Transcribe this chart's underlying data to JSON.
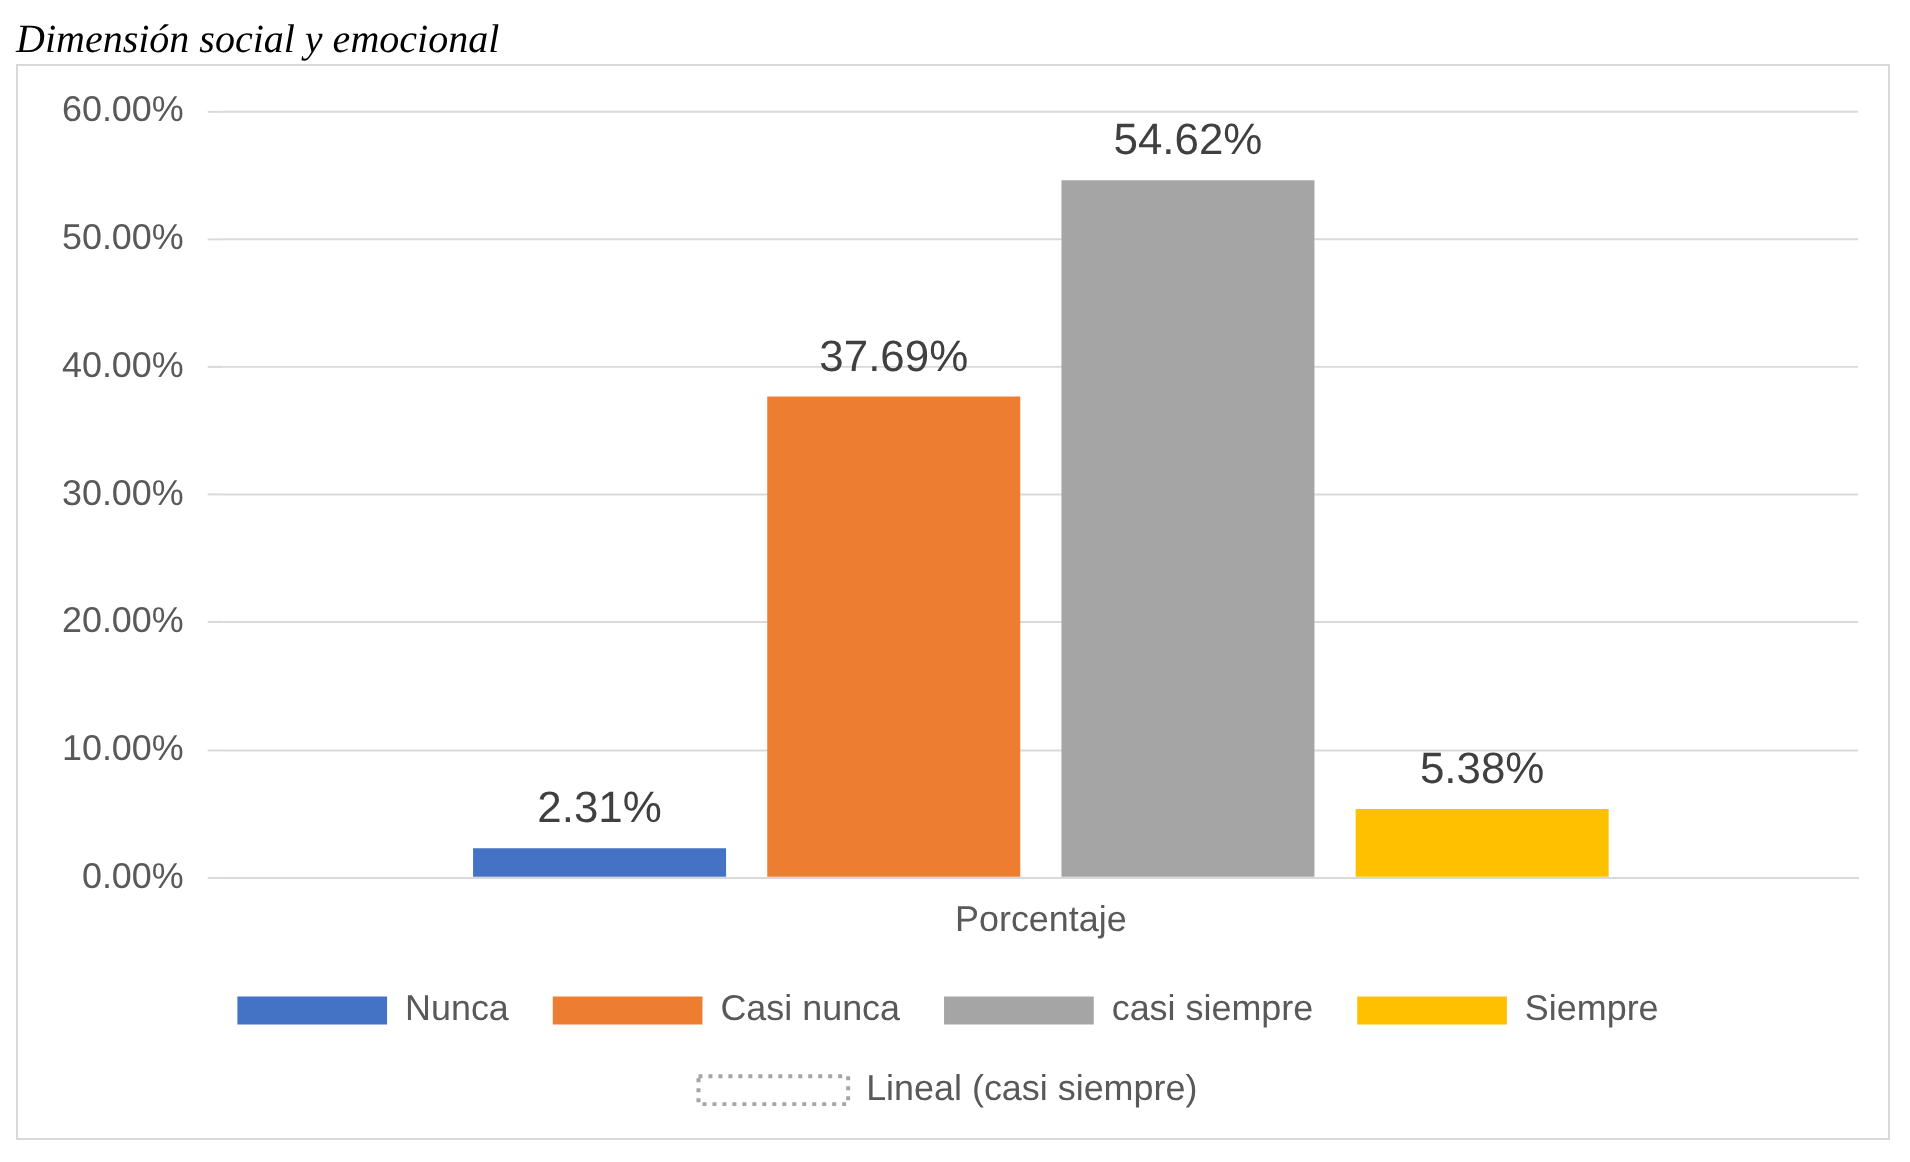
{
  "chart_data": {
    "type": "bar",
    "title": "Dimensión social y emocional",
    "categories": [
      "Porcentaje"
    ],
    "series": [
      {
        "name": "Nunca",
        "color": "#4472c4",
        "values": [
          2.31
        ],
        "value_labels": [
          "2.31%"
        ]
      },
      {
        "name": "Casi nunca",
        "color": "#ed7d31",
        "values": [
          37.69
        ],
        "value_labels": [
          "37.69%"
        ]
      },
      {
        "name": "casi siempre",
        "color": "#a5a5a5",
        "values": [
          54.62
        ],
        "value_labels": [
          "54.62%"
        ]
      },
      {
        "name": "Siempre",
        "color": "#ffc000",
        "values": [
          5.38
        ],
        "value_labels": [
          "5.38%"
        ]
      },
      {
        "name": "Lineal (casi siempre)",
        "type": "line",
        "color": "#a5a5a5",
        "line_style": "dotted",
        "values": [
          null
        ]
      }
    ],
    "ylim": [
      0,
      60
    ],
    "yticks": [
      {
        "value": 0,
        "label": "0.00%"
      },
      {
        "value": 10,
        "label": "10.00%"
      },
      {
        "value": 20,
        "label": "20.00%"
      },
      {
        "value": 30,
        "label": "30.00%"
      },
      {
        "value": 40,
        "label": "40.00%"
      },
      {
        "value": 50,
        "label": "50.00%"
      },
      {
        "value": 60,
        "label": "60.00%"
      }
    ],
    "grid": "y",
    "legend": "bottom"
  }
}
